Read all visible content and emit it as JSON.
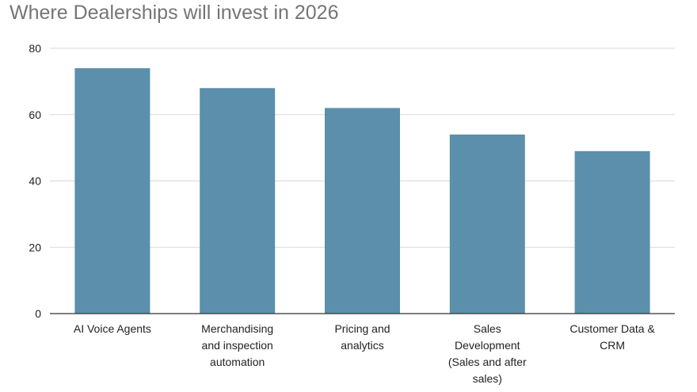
{
  "colors": {
    "bar": "#5b8fab",
    "grid": "#d9d9d9",
    "axis": "#333333",
    "title": "#757575",
    "tick_text": "#222222"
  },
  "chart_data": {
    "type": "bar",
    "title": "Where Dealerships will invest in 2026",
    "xlabel": "",
    "ylabel": "",
    "categories": [
      "AI Voice Agents",
      "Merchandising and inspection automation",
      "Pricing and analytics",
      "Sales Development (Sales and after sales)",
      "Customer Data & CRM"
    ],
    "category_lines": [
      [
        "AI Voice Agents"
      ],
      [
        "Merchandising",
        "and inspection",
        "automation"
      ],
      [
        "Pricing and",
        "analytics"
      ],
      [
        "Sales",
        "Development",
        "(Sales and after",
        "sales)"
      ],
      [
        "Customer Data &",
        "CRM"
      ]
    ],
    "values": [
      74,
      68,
      62,
      54,
      49
    ],
    "ylim": [
      0,
      80
    ],
    "yticks": [
      0,
      20,
      40,
      60,
      80
    ],
    "grid": true,
    "legend": "none"
  }
}
